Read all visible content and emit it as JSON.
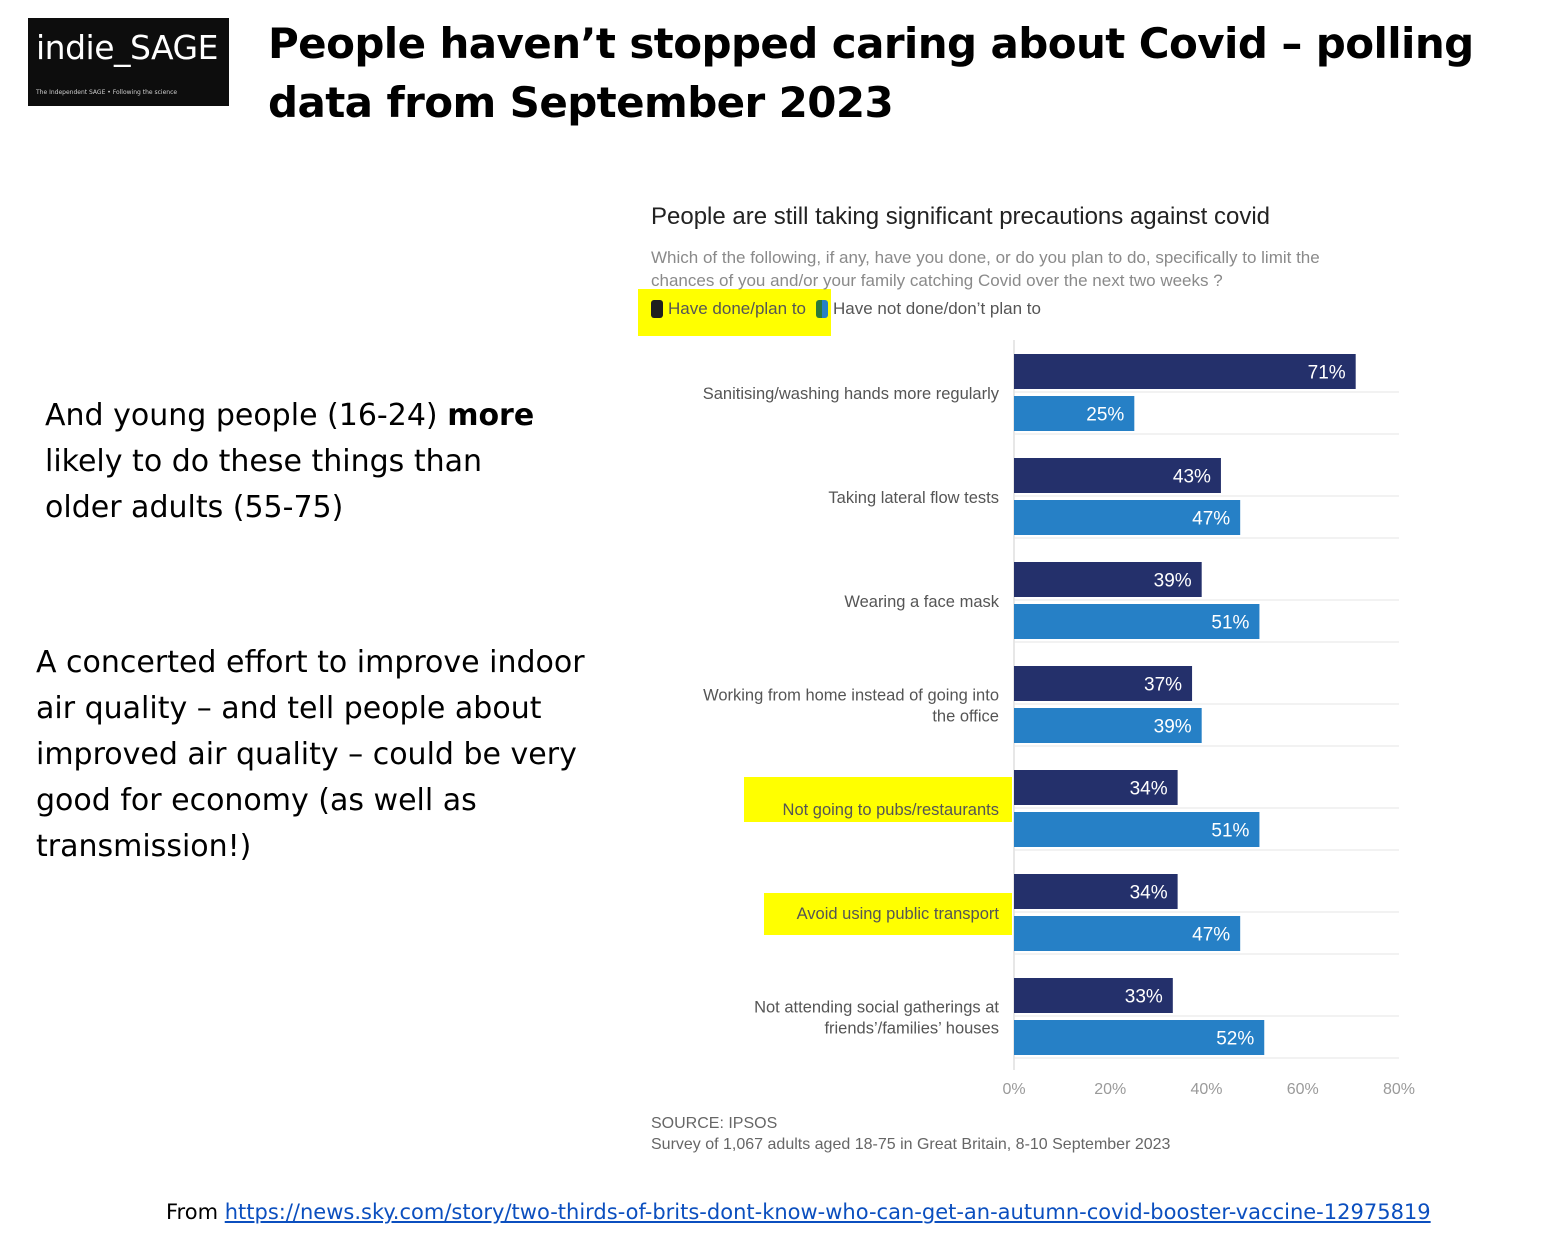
{
  "header": {
    "logo_text": "indie_SAGE",
    "logo_tagline": "The Independent SAGE • Following the science",
    "title": "People haven’t stopped caring about Covid – polling data from September 2023"
  },
  "notes": {
    "note1_pre": "And young people (16-24) ",
    "note1_bold": "more",
    "note1_post": " likely to do these things than older adults (55-75)",
    "note2": "A concerted effort to improve indoor air quality – and tell people about improved air quality – could be very good for economy (as well as transmission!)"
  },
  "footer": {
    "prefix": "From ",
    "link": "https://news.sky.com/story/two-thirds-of-brits-dont-know-who-can-get-an-autumn-covid-booster-vaccine-12975819"
  },
  "highlights": {
    "color": "#ffff00",
    "items": [
      "Have done/plan to",
      "Not going to pubs/restaurants",
      "Avoid using public transport"
    ]
  },
  "chart_data": {
    "type": "bar",
    "orientation": "horizontal",
    "title": "People are still taking significant precautions against covid",
    "subtitle": "Which of the following, if any, have you done, or do you plan to do, specifically to limit the chances of you and/or your family catching Covid over the next two weeks ?",
    "categories": [
      "Sanitising/washing hands more regularly",
      "Taking lateral flow tests",
      "Wearing a face mask",
      "Working from home instead of going into the office",
      "Not going to pubs/restaurants",
      "Avoid using public transport",
      "Not attending social gatherings at friends’/families’ houses"
    ],
    "series": [
      {
        "name": "Have done/plan to",
        "color": "#24306b",
        "values": [
          71,
          43,
          39,
          37,
          34,
          34,
          33
        ]
      },
      {
        "name": "Have not done/don’t plan to",
        "color": "#2680c6",
        "values": [
          25,
          47,
          51,
          39,
          51,
          47,
          52
        ]
      }
    ],
    "value_suffix": "%",
    "xlim": [
      0,
      80
    ],
    "xticks": [
      "0%",
      "20%",
      "40%",
      "60%",
      "80%"
    ],
    "legend_position": "top-left",
    "grid": true,
    "source_line1": "SOURCE: IPSOS",
    "source_line2": "Survey of 1,067 adults aged 18-75 in Great Britain, 8-10 September 2023"
  }
}
